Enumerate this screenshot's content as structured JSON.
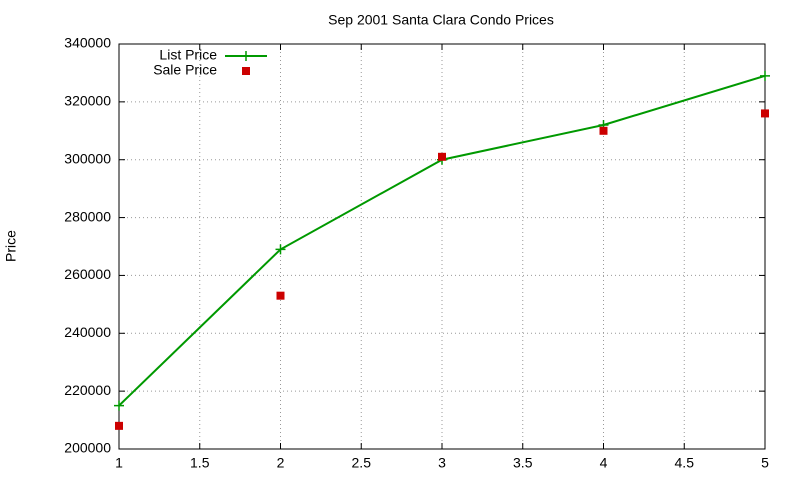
{
  "chart_data": {
    "type": "line",
    "title": "Sep 2001 Santa Clara Condo Prices",
    "y_label": "Price",
    "x": [
      1,
      2,
      3,
      4,
      5
    ],
    "series": [
      {
        "name": "List Price",
        "color": "#009900",
        "line": true,
        "marker": "plus",
        "values": [
          215000,
          269000,
          300000,
          312000,
          329000
        ]
      },
      {
        "name": "Sale Price",
        "color": "#cc0000",
        "line": false,
        "marker": "square",
        "values": [
          208000,
          253000,
          301000,
          310000,
          316000
        ]
      }
    ],
    "xlim": [
      1,
      5
    ],
    "xticks": [
      1,
      1.5,
      2,
      2.5,
      3,
      3.5,
      4,
      4.5,
      5
    ],
    "ylim": [
      200000,
      340000
    ],
    "yticks": [
      200000,
      220000,
      240000,
      260000,
      280000,
      300000,
      320000,
      340000
    ],
    "grid": true,
    "legend": "top-left"
  }
}
